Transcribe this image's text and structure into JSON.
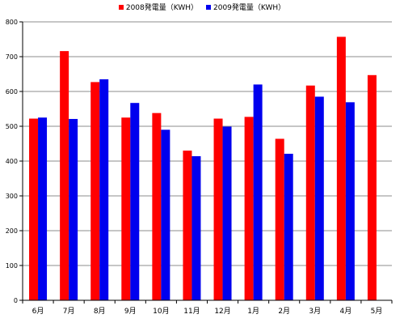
{
  "chart_data": {
    "type": "bar",
    "categories": [
      "6月",
      "7月",
      "8月",
      "9月",
      "10月",
      "11月",
      "12月",
      "1月",
      "2月",
      "3月",
      "4月",
      "5月"
    ],
    "series": [
      {
        "name": "2008発電量（KWH）",
        "color": "#ff0000",
        "values": [
          522,
          716,
          627,
          525,
          538,
          430,
          522,
          527,
          464,
          617,
          757,
          647
        ]
      },
      {
        "name": "2009発電量（KWH）",
        "color": "#0000ee",
        "values": [
          525,
          521,
          635,
          567,
          490,
          414,
          499,
          620,
          421,
          585,
          569,
          null
        ]
      }
    ],
    "yticks": [
      "0",
      "100",
      "200",
      "300",
      "400",
      "500",
      "600",
      "700",
      "800"
    ],
    "ylim": [
      0,
      800
    ],
    "grid": true,
    "legend_position": "top"
  }
}
